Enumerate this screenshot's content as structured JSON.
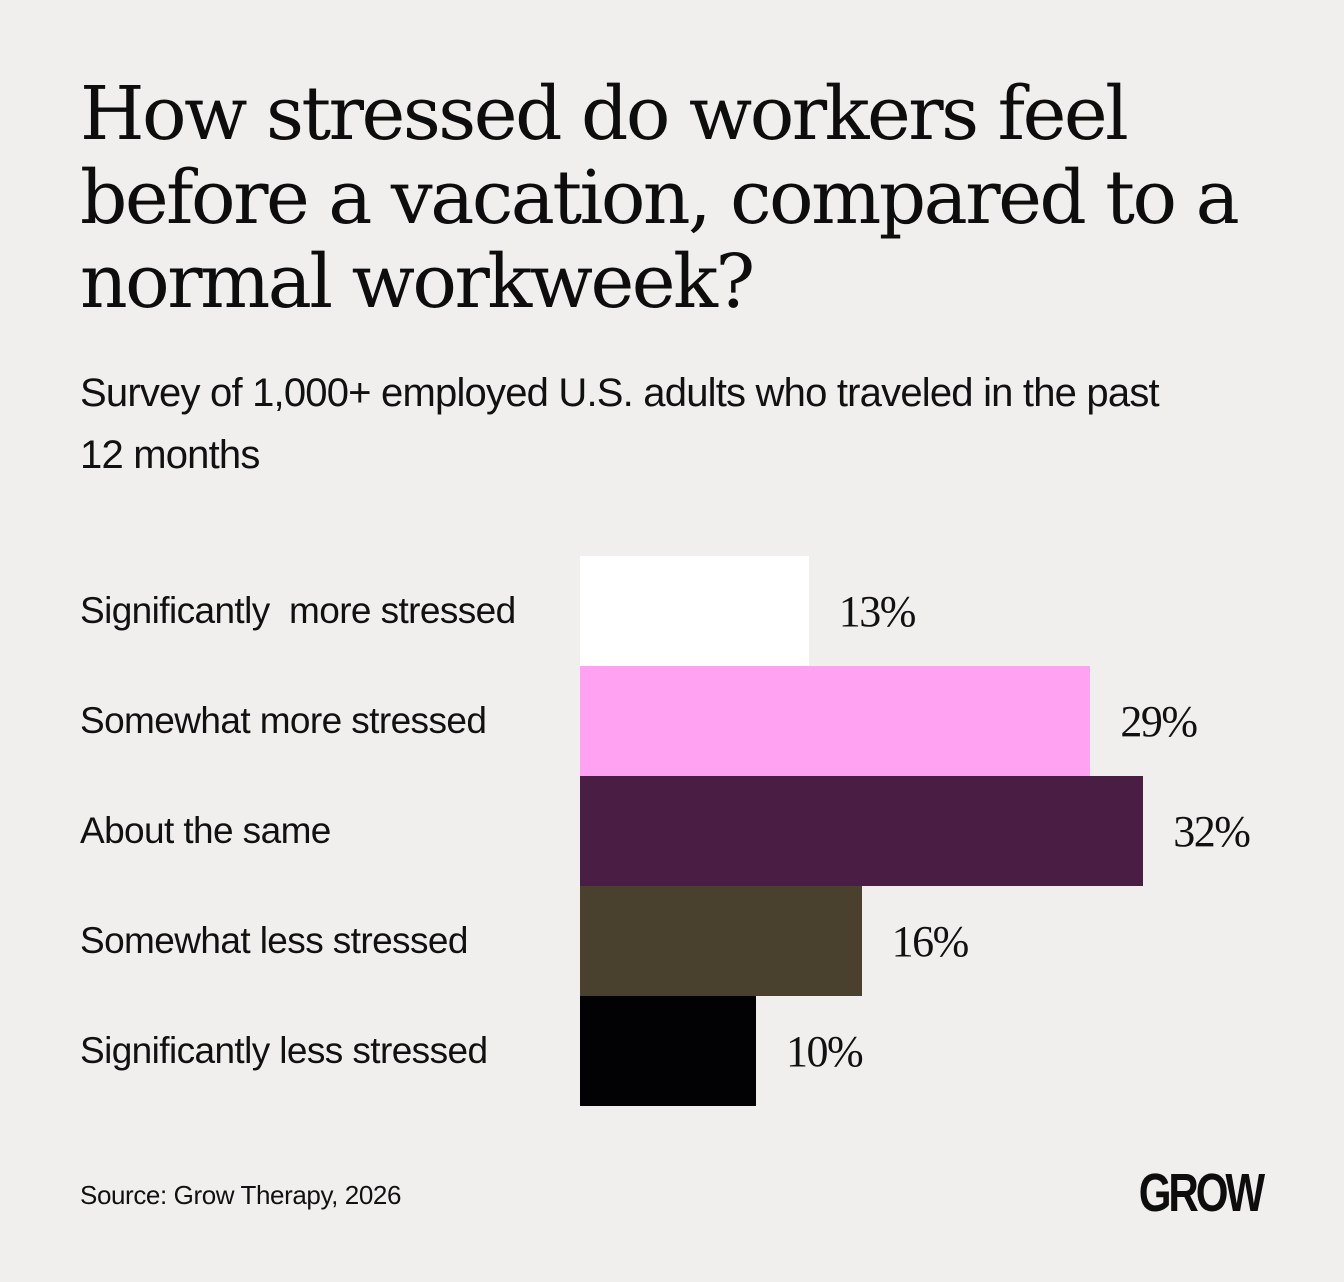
{
  "title": "How stressed do workers feel before a vacation, compared to a normal workweek?",
  "subtitle": "Survey of 1,000+ employed U.S. adults who traveled in the past 12 months",
  "source": "Source: Grow Therapy,  2026",
  "logo_text": "GROW",
  "chart_data": {
    "type": "bar",
    "orientation": "horizontal",
    "title": "How stressed do workers feel before a vacation, compared to a normal workweek?",
    "subtitle": "Survey of 1,000+ employed U.S. adults who traveled in the past 12 months",
    "categories": [
      "Significantly  more stressed",
      "Somewhat more stressed",
      "About the same",
      "Somewhat less stressed",
      "Significantly less stressed"
    ],
    "values": [
      13,
      29,
      32,
      16,
      10
    ],
    "value_labels": [
      "13%",
      "29%",
      "32%",
      "16%",
      "10%"
    ],
    "colors": [
      "#ffffff",
      "#ffa2f2",
      "#4a1d45",
      "#4a402e",
      "#020204"
    ],
    "unit": "%",
    "grid": false,
    "legend": "none",
    "xlabel": "",
    "ylabel": ""
  }
}
